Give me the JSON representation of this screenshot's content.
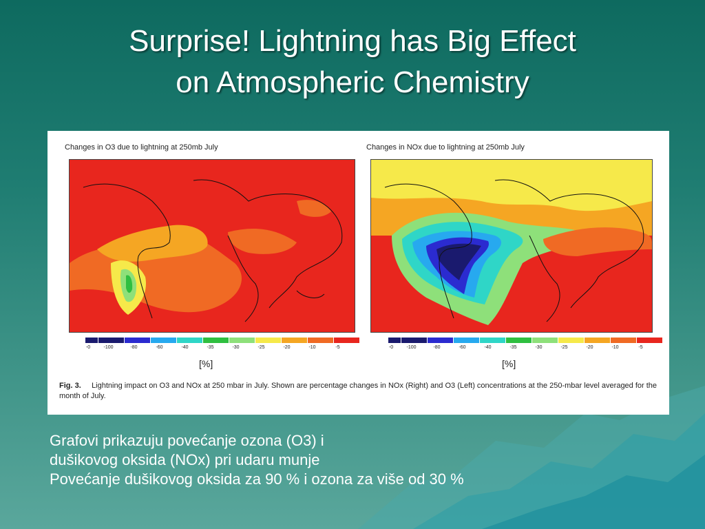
{
  "slide": {
    "title_line1": "Surprise! Lightning has Big Effect",
    "title_line2": "on Atmospheric Chemistry"
  },
  "figure": {
    "left_title": "Changes in O3 due to lightning at 250mb July",
    "right_title": "Changes in NOx due to lightning at 250mb July",
    "colorbar_ticks": [
      "-0",
      "-100",
      "-80",
      "-60",
      "-40",
      "-35",
      "-30",
      "-25",
      "-20",
      "-10",
      "-5"
    ],
    "colorbar_colors": [
      "#1a1a6e",
      "#2b2bd0",
      "#27a9ef",
      "#2fd6c7",
      "#2fbf40",
      "#8ee07a",
      "#e8f0c8",
      "#f6e94a",
      "#f5a623",
      "#f06a24",
      "#e8261e"
    ],
    "unit_left": "[%]",
    "unit_right": "[%]",
    "caption_label": "Fig. 3.",
    "caption_text": "Lightning impact on O3 and NOx at 250 mbar in July. Shown are percentage changes in NOx (Right) and O3 (Left) concentrations at the 250-mbar level averaged for the month of July."
  },
  "body": {
    "line1": "Grafovi prikazuju povećanje ozona (O3) i",
    "line2": "dušikovog oksida (NOx) pri udaru munje",
    "line3": "Povećanje dušikovog oksida za 90 % i ozona za više od 30 %"
  }
}
